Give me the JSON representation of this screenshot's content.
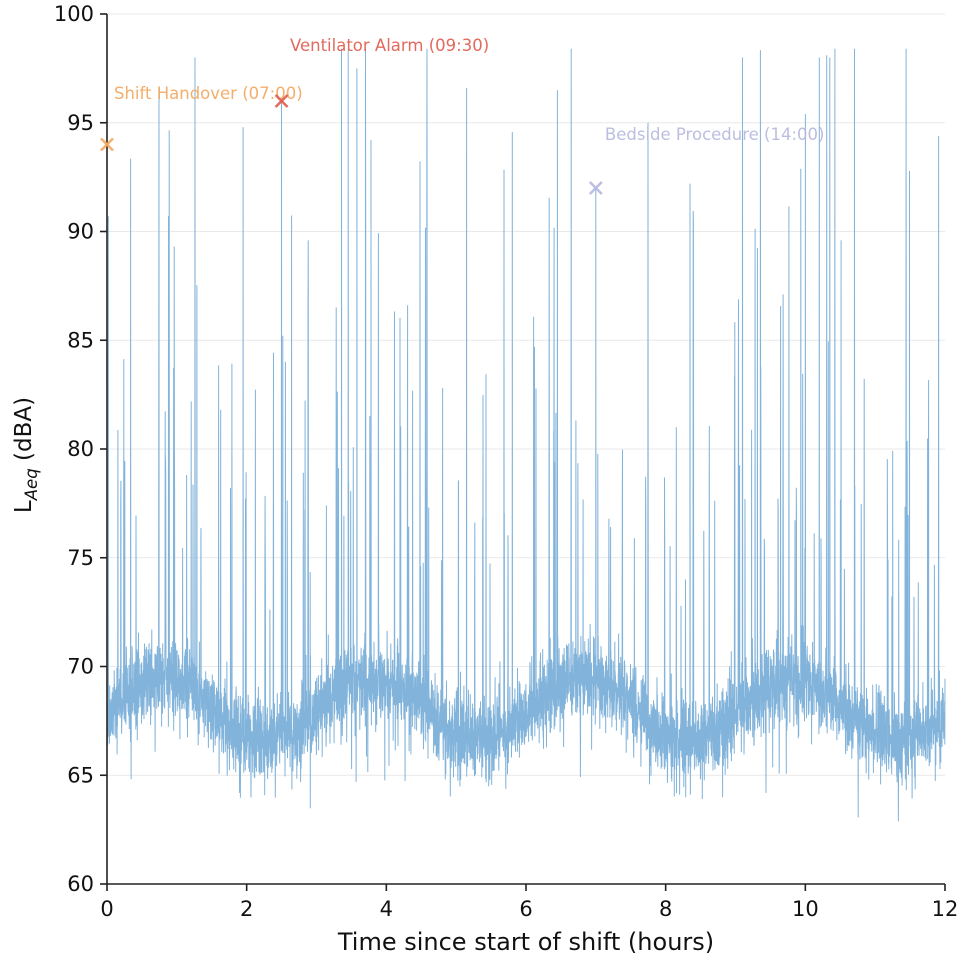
{
  "figure": {
    "ylabel_prefix": "L",
    "ylabel_sub": "Aeq",
    "ylabel_suffix": " (dBA)"
  },
  "chart_data": {
    "type": "line",
    "title": "",
    "xlabel": "Time since start of shift (hours)",
    "ylabel": "L_Aeq (dBA)",
    "xlim": [
      0,
      12
    ],
    "ylim": [
      60,
      100
    ],
    "xticks": [
      0,
      2,
      4,
      6,
      8,
      10,
      12
    ],
    "yticks": [
      60,
      65,
      70,
      75,
      80,
      85,
      90,
      95,
      100
    ],
    "grid": "horizontal",
    "line_color": "#7bafd8",
    "axis_color": "#222222",
    "grid_color": "#e9e9e9",
    "tick_label_color": "#111111",
    "series_description": "Continuous A-weighted equivalent sound level in an ICU over a 12-hour shift: dense baseline fluctuating around 66-70 dBA with a slow ~3-hour cycle (valleys near 2, 5.3, 8.2 and 11.2 h dipping to ~62-64 dBA) and frequent transient spikes reaching 75-98 dBA.",
    "signal_model": {
      "baseline_dBA": 68.0,
      "slow_cycle_amplitude_dBA": 1.4,
      "slow_cycle_period_hours": 3.0,
      "slow_cycle_phase_hours": 0.05,
      "noise_sd_dBA": 0.95,
      "spike_probability": 0.028,
      "spike_continue_probability": 0.3,
      "spike_min_height_dBA": 6,
      "spike_exp_scale_dBA": 8,
      "dip_probability": 0.008,
      "max_dBA": 98.4,
      "min_dBA": 61.5,
      "samples": 5000,
      "seed": 1337
    },
    "notable_peaks": [
      [
        0.02,
        90.7
      ],
      [
        1.26,
        98.0
      ],
      [
        1.95,
        94.8
      ],
      [
        2.5,
        96.0
      ],
      [
        3.58,
        97.5
      ],
      [
        3.78,
        94.2
      ],
      [
        5.15,
        96.6
      ],
      [
        6.45,
        96.5
      ],
      [
        7.0,
        92.0
      ],
      [
        8.35,
        92.2
      ],
      [
        9.1,
        98.0
      ],
      [
        10.0,
        95.4
      ],
      [
        10.2,
        98.0
      ],
      [
        10.35,
        98.0
      ]
    ],
    "annotations": [
      {
        "label": "Shift Handover (07:00)",
        "x": 0.0,
        "y": 94.0,
        "text_x": 0.1,
        "text_y": 96.1,
        "color": "#f3a75e",
        "marker": "x"
      },
      {
        "label": "Ventilator Alarm (09:30)",
        "x": 2.5,
        "y": 96.0,
        "text_x": 2.62,
        "text_y": 98.3,
        "color": "#e05c4e",
        "marker": "x"
      },
      {
        "label": "Bedside Procedure (14:00)",
        "x": 7.0,
        "y": 92.0,
        "text_x": 7.13,
        "text_y": 94.2,
        "color": "#b6b9de",
        "marker": "x"
      }
    ]
  }
}
